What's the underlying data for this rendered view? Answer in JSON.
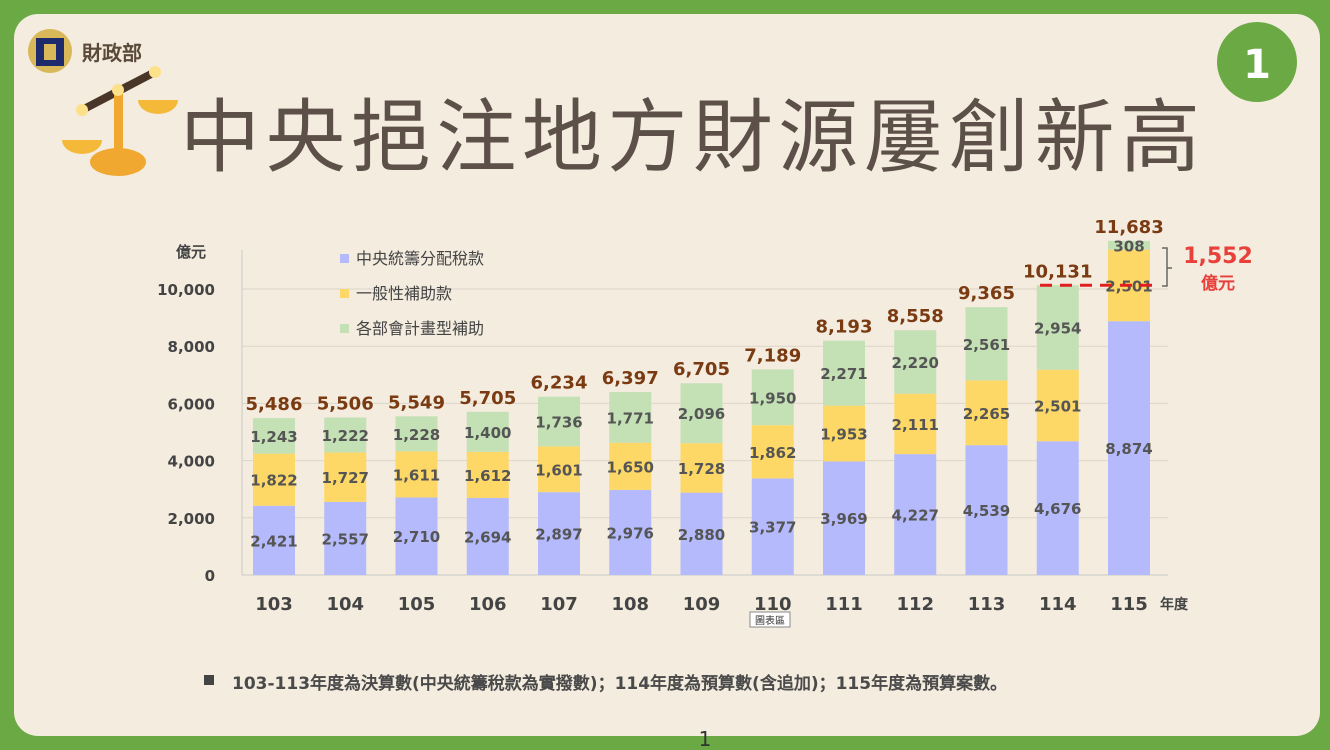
{
  "header": {
    "org": "財政部",
    "title": "中央挹注地方財源屢創新高",
    "page_badge": "1"
  },
  "chart_data": {
    "type": "bar",
    "stacked": true,
    "ylabel": "億元",
    "xlabel": "年度",
    "ylim": [
      0,
      12000
    ],
    "yticks": [
      0,
      2000,
      4000,
      6000,
      8000,
      10000
    ],
    "ytick_labels": [
      "0",
      "2,000",
      "4,000",
      "6,000",
      "8,000",
      "10,000"
    ],
    "grid": true,
    "legend_position": "top-left",
    "categories": [
      "103",
      "104",
      "105",
      "106",
      "107",
      "108",
      "109",
      "110",
      "111",
      "112",
      "113",
      "114",
      "115"
    ],
    "series": [
      {
        "name": "中央統籌分配稅款",
        "color": "#b4bafb",
        "values": [
          2421,
          2557,
          2710,
          2694,
          2897,
          2976,
          2880,
          3377,
          3969,
          4227,
          4539,
          4676,
          8874
        ],
        "labels": [
          "2,421",
          "2,557",
          "2,710",
          "2,694",
          "2,897",
          "2,976",
          "2,880",
          "3,377",
          "3,969",
          "4,227",
          "4,539",
          "4,676",
          "8,874"
        ]
      },
      {
        "name": "一般性補助款",
        "color": "#fdd866",
        "values": [
          1822,
          1727,
          1611,
          1612,
          1601,
          1650,
          1728,
          1862,
          1953,
          2111,
          2265,
          2501,
          2501
        ],
        "labels": [
          "1,822",
          "1,727",
          "1,611",
          "1,612",
          "1,601",
          "1,650",
          "1,728",
          "1,862",
          "1,953",
          "2,111",
          "2,265",
          "2,501",
          "2,501"
        ]
      },
      {
        "name": "各部會計畫型補助",
        "color": "#c4e0b5",
        "values": [
          1243,
          1222,
          1228,
          1400,
          1736,
          1771,
          2096,
          1950,
          2271,
          2220,
          2561,
          2954,
          308
        ],
        "labels": [
          "1,243",
          "1,222",
          "1,228",
          "1,400",
          "1,736",
          "1,771",
          "2,096",
          "1,950",
          "2,271",
          "2,220",
          "2,561",
          "2,954",
          "308"
        ]
      }
    ],
    "totals": [
      5486,
      5506,
      5549,
      5705,
      6234,
      6397,
      6705,
      7189,
      8193,
      8558,
      9365,
      10131,
      11683
    ],
    "total_labels": [
      "5,486",
      "5,506",
      "5,549",
      "5,705",
      "6,234",
      "6,397",
      "6,705",
      "7,189",
      "8,193",
      "8,558",
      "9,365",
      "10,131",
      "11,683"
    ],
    "annotation": {
      "value": "1,552",
      "unit": "億元",
      "reference_level": 10131,
      "color": "#e8403a"
    },
    "tooltip": "圖表區"
  },
  "footnote": "103-113年度為決算數(中央統籌稅款為實撥數)；114年度為預算數(含追加)；115年度為預算案數。",
  "page_number": "1"
}
